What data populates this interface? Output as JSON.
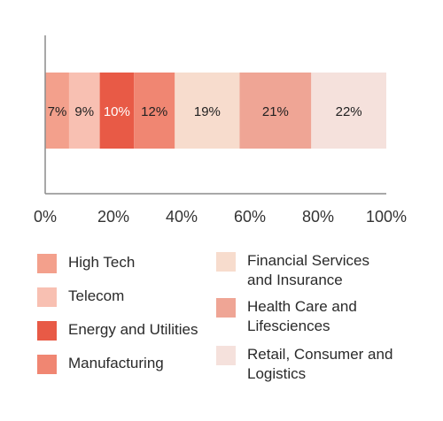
{
  "chart_data": {
    "type": "bar",
    "orientation": "horizontal-stacked-100",
    "categories": [
      ""
    ],
    "series": [
      {
        "name": "High Tech",
        "values": [
          7
        ],
        "label": "7%",
        "color": "#F3A08C"
      },
      {
        "name": "Telecom",
        "values": [
          9
        ],
        "label": "9%",
        "color": "#F8C0B2"
      },
      {
        "name": "Energy and Utilities",
        "values": [
          10
        ],
        "label": "10%",
        "color": "#E85A46"
      },
      {
        "name": "Manufacturing",
        "values": [
          12
        ],
        "label": "12%",
        "color": "#F08672"
      },
      {
        "name": "Financial Services and Insurance",
        "values": [
          19
        ],
        "label": "19%",
        "color": "#F7DCCD"
      },
      {
        "name": "Health Care and Lifesciences",
        "values": [
          21
        ],
        "label": "21%",
        "color": "#EFA595"
      },
      {
        "name": "Retail, Consumer and Logistics",
        "values": [
          22
        ],
        "label": "22%",
        "color": "#F5E1DC"
      }
    ],
    "xlim": [
      0,
      100
    ],
    "xticks": [
      "0%",
      "20%",
      "40%",
      "60%",
      "80%",
      "100%"
    ],
    "title": "",
    "xlabel": "",
    "ylabel": "",
    "grid": false,
    "legend_position": "bottom"
  },
  "legend": {
    "left": [
      {
        "label": "High Tech",
        "color": "#F3A08C"
      },
      {
        "label": "Telecom",
        "color": "#F8C0B2"
      },
      {
        "label": "Energy and Utilities",
        "color": "#E85A46"
      },
      {
        "label": "Manufacturing",
        "color": "#F08672"
      }
    ],
    "right": [
      {
        "label": "Financial Services\nand Insurance",
        "color": "#F7DCCD"
      },
      {
        "label": "Health Care and\nLifesciences",
        "color": "#EFA595"
      },
      {
        "label": "Retail, Consumer and\nLogistics",
        "color": "#F5E1DC"
      }
    ]
  }
}
